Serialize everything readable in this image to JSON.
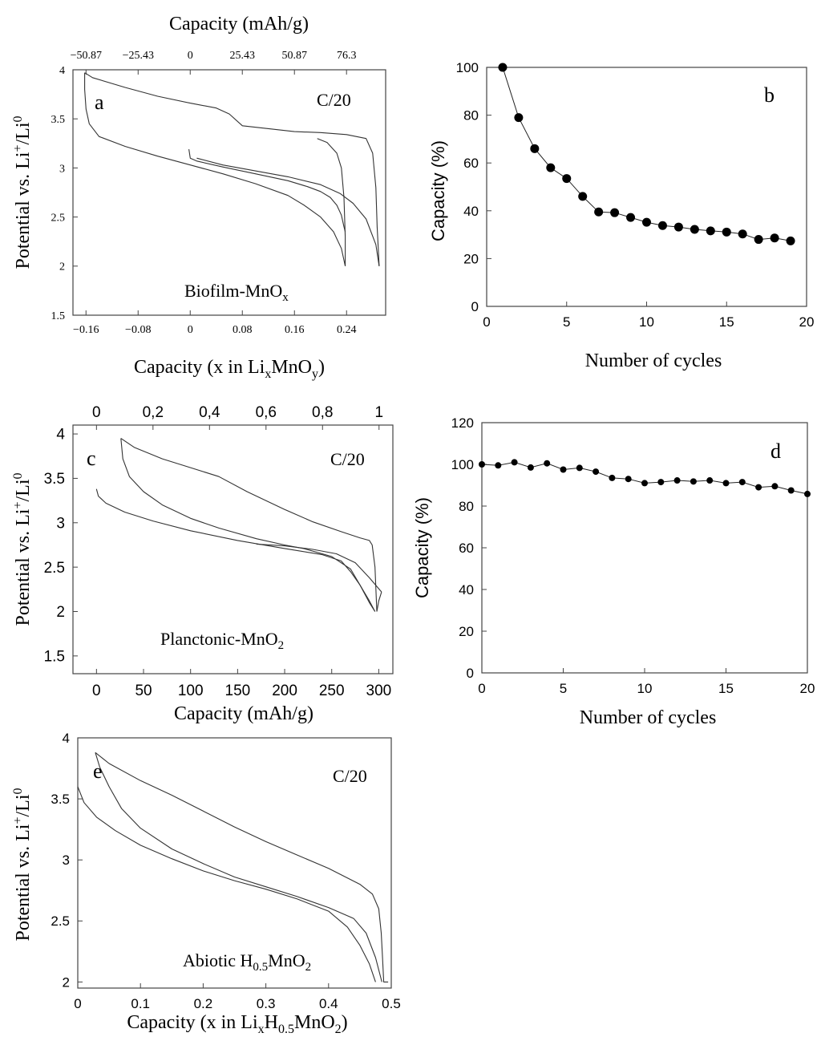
{
  "chart_data": [
    {
      "id": "a",
      "type": "line",
      "panel_letter": "a",
      "rate_label": "C/20",
      "annotation": {
        "main": "Biofilm-MnO",
        "sub": "x"
      },
      "xlabel": {
        "pre": "Capacity (x in Li",
        "sub1": "x",
        "mid": "MnO",
        "sub2": "y",
        "post": ")"
      },
      "x2label": "Capacity (mAh/g)",
      "ylabel": {
        "pre": "Potential vs. Li",
        "sup1": "+",
        "mid": "/Li",
        "sup2": "0"
      },
      "xlim": [
        -0.18,
        0.3
      ],
      "ylim": [
        1.5,
        4.0
      ],
      "x_ticks": [
        -0.16,
        -0.08,
        0,
        0.08,
        0.16,
        0.24
      ],
      "x_tick_labels": [
        "−0.16",
        "−0.08",
        "0",
        "0.08",
        "0.16",
        "0.24"
      ],
      "x2_ticks": [
        -50.87,
        -25.43,
        0,
        25.43,
        50.87,
        76.3
      ],
      "x2_tick_labels": [
        "−50.87",
        "−25.43",
        "0",
        "25.43",
        "50.87",
        "76.3"
      ],
      "x2_per_x": 318,
      "y_ticks": [
        1.5,
        2,
        2.5,
        3,
        3.5,
        4
      ],
      "y_tick_labels": [
        "1.5",
        "2",
        "2.5",
        "3",
        "3.5",
        "4"
      ],
      "series": [
        {
          "x": [
            -0.002,
            0.0,
            0.01,
            0.05,
            0.1,
            0.15,
            0.18,
            0.2,
            0.215,
            0.225,
            0.232,
            0.236,
            0.238
          ],
          "y": [
            3.19,
            3.1,
            3.07,
            3.01,
            2.94,
            2.87,
            2.81,
            2.76,
            2.7,
            2.62,
            2.52,
            2.4,
            2.35
          ]
        },
        {
          "x": [
            0.238,
            0.232,
            0.22,
            0.2,
            0.175,
            0.15,
            0.1,
            0.05,
            0.0,
            -0.05,
            -0.1,
            -0.14,
            -0.155,
            -0.16,
            -0.162,
            -0.162
          ],
          "y": [
            2.0,
            2.18,
            2.35,
            2.5,
            2.62,
            2.72,
            2.84,
            2.94,
            3.03,
            3.12,
            3.22,
            3.32,
            3.45,
            3.6,
            3.8,
            3.97
          ]
        },
        {
          "x": [
            -0.162,
            -0.15,
            -0.1,
            -0.05,
            0.0,
            0.04,
            0.06,
            0.08,
            0.12,
            0.16,
            0.2,
            0.24,
            0.27,
            0.28,
            0.285,
            0.287,
            0.29
          ],
          "y": [
            3.97,
            3.92,
            3.82,
            3.73,
            3.66,
            3.61,
            3.55,
            3.43,
            3.4,
            3.37,
            3.36,
            3.34,
            3.3,
            3.15,
            2.8,
            2.4,
            2.0
          ]
        },
        {
          "x": [
            0.29,
            0.285,
            0.27,
            0.25,
            0.23,
            0.2,
            0.15,
            0.1,
            0.05,
            0.01
          ],
          "y": [
            2.0,
            2.22,
            2.48,
            2.64,
            2.74,
            2.83,
            2.91,
            2.97,
            3.03,
            3.1
          ]
        },
        {
          "x": [
            0.238,
            0.238,
            0.236,
            0.232,
            0.225,
            0.21,
            0.195
          ],
          "y": [
            2.0,
            2.3,
            2.7,
            3.0,
            3.15,
            3.26,
            3.3
          ]
        }
      ]
    },
    {
      "id": "b",
      "type": "scatter",
      "panel_letter": "b",
      "xlabel": "Number of cycles",
      "ylabel": "Capacity (%)",
      "xlim": [
        0,
        20
      ],
      "ylim": [
        0,
        100
      ],
      "x_ticks": [
        0,
        5,
        10,
        15,
        20
      ],
      "y_ticks": [
        0,
        20,
        40,
        60,
        80,
        100
      ],
      "x": [
        1,
        2,
        3,
        4,
        5,
        6,
        7,
        8,
        9,
        10,
        11,
        12,
        13,
        14,
        15,
        16,
        17,
        18,
        19
      ],
      "y": [
        100,
        79,
        66,
        58,
        53.5,
        46,
        39.5,
        39.2,
        37.2,
        35.2,
        33.8,
        33.2,
        32.2,
        31.6,
        31.1,
        30.3,
        28,
        28.6,
        27.4
      ]
    },
    {
      "id": "c",
      "type": "line",
      "panel_letter": "c",
      "rate_label": "C/20",
      "annotation": {
        "main": "Planctonic-MnO",
        "sub": "2"
      },
      "xlabel": "Capacity (mAh/g)",
      "ylabel": {
        "pre": "Potential vs. Li",
        "sup1": "+",
        "mid": "/Li",
        "sup2": "0"
      },
      "xlim": [
        -25,
        315
      ],
      "ylim": [
        1.3,
        4.1
      ],
      "x_ticks": [
        0,
        50,
        100,
        150,
        200,
        250,
        300
      ],
      "y_ticks": [
        1.5,
        2,
        2.5,
        3,
        3.5,
        4
      ],
      "y_tick_labels": [
        "1.5",
        "2",
        "2.5",
        "3",
        "3.5",
        "4"
      ],
      "x2_ticks": [
        0,
        0.2,
        0.4,
        0.6,
        0.8,
        1
      ],
      "x2_tick_labels": [
        "0",
        "0,2",
        "0,4",
        "0,6",
        "0,8",
        "1"
      ],
      "x2_per_x": 0.00333,
      "series": [
        {
          "x": [
            0,
            2,
            10,
            30,
            60,
            100,
            150,
            200,
            240,
            260,
            270,
            280,
            290,
            296
          ],
          "y": [
            3.38,
            3.3,
            3.22,
            3.12,
            3.02,
            2.91,
            2.8,
            2.71,
            2.64,
            2.57,
            2.45,
            2.3,
            2.12,
            2.0
          ]
        },
        {
          "x": [
            296,
            290,
            280,
            270,
            250,
            220,
            200,
            170,
            130,
            100,
            70,
            50,
            35,
            28,
            26
          ],
          "y": [
            2.0,
            2.1,
            2.3,
            2.48,
            2.62,
            2.71,
            2.75,
            2.82,
            2.94,
            3.05,
            3.2,
            3.35,
            3.52,
            3.72,
            3.95
          ]
        },
        {
          "x": [
            26,
            40,
            70,
            100,
            130,
            160,
            200,
            230,
            260,
            280,
            290,
            293,
            296,
            298
          ],
          "y": [
            3.95,
            3.85,
            3.72,
            3.62,
            3.52,
            3.35,
            3.15,
            3.01,
            2.9,
            2.83,
            2.8,
            2.75,
            2.5,
            2.0
          ]
        },
        {
          "x": [
            298,
            300,
            303
          ],
          "y": [
            2.0,
            2.12,
            2.22
          ]
        },
        {
          "x": [
            303,
            290,
            275,
            255,
            230,
            200,
            170
          ],
          "y": [
            2.22,
            2.38,
            2.55,
            2.65,
            2.7,
            2.74,
            2.76
          ]
        }
      ]
    },
    {
      "id": "d",
      "type": "scatter",
      "panel_letter": "d",
      "xlabel": "Number of cycles",
      "ylabel": "Capacity (%)",
      "xlim": [
        0,
        20
      ],
      "ylim": [
        0,
        120
      ],
      "x_ticks": [
        0,
        5,
        10,
        15,
        20
      ],
      "y_ticks": [
        0,
        20,
        40,
        60,
        80,
        100,
        120
      ],
      "x": [
        0,
        1,
        2,
        3,
        4,
        5,
        6,
        7,
        8,
        9,
        10,
        11,
        12,
        13,
        14,
        15,
        16,
        17,
        18,
        19,
        20
      ],
      "y": [
        100,
        99.5,
        101,
        98.5,
        100.5,
        97.5,
        98.3,
        96.5,
        93.5,
        93,
        91,
        91.5,
        92.3,
        91.8,
        92.3,
        91,
        91.5,
        89,
        89.5,
        87.5,
        85.8
      ]
    },
    {
      "id": "e",
      "type": "line",
      "panel_letter": "e",
      "rate_label": "C/20",
      "annotation": {
        "pre": "Abiotic H",
        "sub1": "0.5",
        "mid": "MnO",
        "sub2": "2"
      },
      "xlabel": {
        "pre": "Capacity (x in Li",
        "sub1": "x",
        "mid": "H",
        "sub2": "0.5",
        "mid2": "MnO",
        "sub3": "2",
        "post": ")"
      },
      "ylabel": {
        "pre": "Potential vs. Li",
        "sup1": "+",
        "mid": "/Li",
        "sup2": "0"
      },
      "xlim": [
        0,
        0.5
      ],
      "ylim": [
        1.95,
        4.0
      ],
      "x_ticks": [
        0,
        0.1,
        0.2,
        0.3,
        0.4,
        0.5
      ],
      "y_ticks": [
        2,
        2.5,
        3,
        3.5,
        4
      ],
      "y_tick_labels": [
        "2",
        "2.5",
        "3",
        "3.5",
        "4"
      ],
      "series": [
        {
          "x": [
            0.0,
            0.01,
            0.03,
            0.06,
            0.1,
            0.15,
            0.2,
            0.25,
            0.3,
            0.35,
            0.4,
            0.43,
            0.45,
            0.465,
            0.475
          ],
          "y": [
            3.6,
            3.47,
            3.35,
            3.24,
            3.12,
            3.01,
            2.91,
            2.83,
            2.76,
            2.68,
            2.58,
            2.45,
            2.3,
            2.15,
            2.0
          ]
        },
        {
          "x": [
            0.485,
            0.475,
            0.46,
            0.44,
            0.4,
            0.35,
            0.3,
            0.25,
            0.2,
            0.15,
            0.1,
            0.07,
            0.05,
            0.035,
            0.028
          ],
          "y": [
            2.0,
            2.2,
            2.4,
            2.52,
            2.61,
            2.7,
            2.78,
            2.86,
            2.97,
            3.09,
            3.26,
            3.42,
            3.6,
            3.76,
            3.88
          ]
        },
        {
          "x": [
            0.028,
            0.05,
            0.1,
            0.15,
            0.2,
            0.25,
            0.3,
            0.35,
            0.4,
            0.45,
            0.47,
            0.48,
            0.484,
            0.486,
            0.488,
            0.49,
            0.495
          ],
          "y": [
            3.88,
            3.79,
            3.65,
            3.53,
            3.4,
            3.27,
            3.15,
            3.04,
            2.93,
            2.8,
            2.72,
            2.6,
            2.4,
            2.2,
            2.0,
            2.0,
            2.0
          ]
        }
      ]
    }
  ]
}
